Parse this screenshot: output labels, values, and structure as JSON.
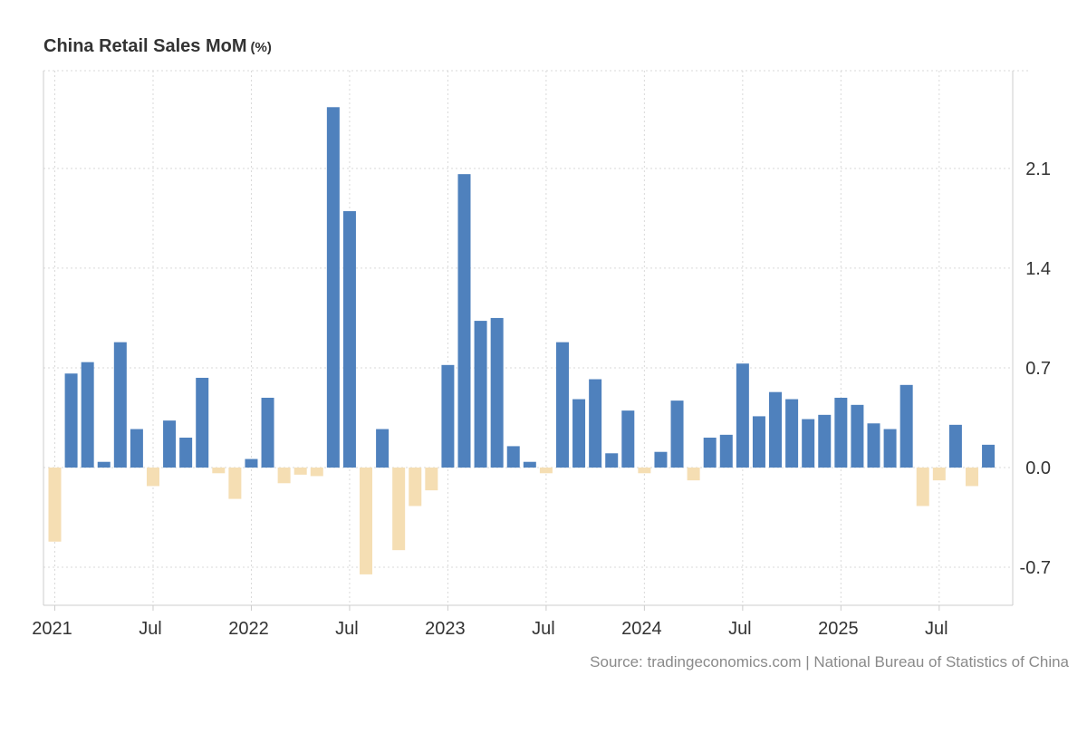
{
  "colors": {
    "positive": "#4f81bd",
    "negative": "#f5deb3",
    "grid": "#d9d9d9",
    "axis": "#cccccc",
    "text": "#333333",
    "source": "#8a8a8a"
  },
  "chart_data": {
    "type": "bar",
    "title": "China Retail Sales MoM",
    "unit": "(%)",
    "xlabel": "",
    "ylabel": "",
    "ylim": [
      -0.9,
      2.8
    ],
    "y_ticks": [
      -0.7,
      0.0,
      0.7,
      1.4,
      2.1
    ],
    "y_tick_labels": [
      "-0.7",
      "0.0",
      "0.7",
      "1.4",
      "2.1"
    ],
    "x_tick_labels": [
      {
        "label": "2021",
        "index": 0
      },
      {
        "label": "Jul",
        "index": 6
      },
      {
        "label": "2022",
        "index": 12
      },
      {
        "label": "Jul",
        "index": 18
      },
      {
        "label": "2023",
        "index": 24
      },
      {
        "label": "Jul",
        "index": 30
      },
      {
        "label": "2024",
        "index": 36
      },
      {
        "label": "Jul",
        "index": 42
      },
      {
        "label": "2025",
        "index": 48
      },
      {
        "label": "Jul",
        "index": 54
      }
    ],
    "categories": [
      "Jan 2021",
      "Feb 2021",
      "Mar 2021",
      "Apr 2021",
      "May 2021",
      "Jun 2021",
      "Jul 2021",
      "Aug 2021",
      "Sep 2021",
      "Oct 2021",
      "Nov 2021",
      "Dec 2021",
      "Jan 2022",
      "Feb 2022",
      "Mar 2022",
      "Apr 2022",
      "May 2022",
      "Jun 2022",
      "Jul 2022",
      "Aug 2022",
      "Sep 2022",
      "Oct 2022",
      "Nov 2022",
      "Dec 2022",
      "Jan 2023",
      "Feb 2023",
      "Mar 2023",
      "Apr 2023",
      "May 2023",
      "Jun 2023",
      "Jul 2023",
      "Aug 2023",
      "Sep 2023",
      "Oct 2023",
      "Nov 2023",
      "Dec 2023",
      "Jan 2024",
      "Feb 2024",
      "Mar 2024",
      "Apr 2024",
      "May 2024",
      "Jun 2024",
      "Jul 2024",
      "Aug 2024",
      "Sep 2024",
      "Oct 2024",
      "Nov 2024",
      "Dec 2024",
      "Jan 2025",
      "Feb 2025",
      "Mar 2025",
      "Apr 2025",
      "May 2025",
      "Jun 2025",
      "Jul 2025",
      "Aug 2025",
      "Sep 2025",
      "Oct 2025"
    ],
    "values": [
      -0.52,
      0.66,
      0.74,
      0.04,
      0.88,
      0.27,
      -0.13,
      0.33,
      0.21,
      0.63,
      -0.04,
      -0.22,
      0.06,
      0.49,
      -0.11,
      -0.05,
      -0.06,
      2.53,
      1.8,
      -0.75,
      0.27,
      -0.58,
      -0.27,
      -0.16,
      0.72,
      2.06,
      1.03,
      1.05,
      0.15,
      0.04,
      -0.04,
      0.88,
      0.48,
      0.62,
      0.1,
      0.4,
      -0.04,
      0.11,
      0.47,
      -0.09,
      0.21,
      0.23,
      0.73,
      0.36,
      0.53,
      0.48,
      0.34,
      0.37,
      0.49,
      0.44,
      0.31,
      0.27,
      0.58,
      -0.27,
      -0.09,
      0.3,
      -0.13,
      0.16
    ]
  },
  "source": "Source: tradingeconomics.com | National Bureau of Statistics of China"
}
